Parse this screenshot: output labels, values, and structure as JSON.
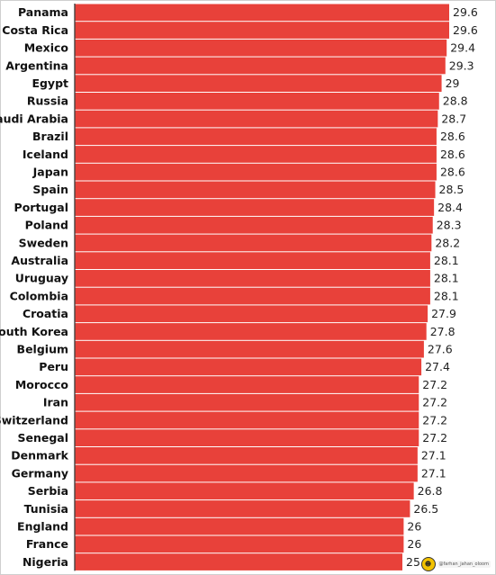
{
  "chart_data": {
    "type": "bar",
    "orientation": "horizontal",
    "categories": [
      "Panama",
      "Costa Rica",
      "Mexico",
      "Argentina",
      "Egypt",
      "Russia",
      "Saudi Arabia",
      "Brazil",
      "Iceland",
      "Japan",
      "Spain",
      "Portugal",
      "Poland",
      "Sweden",
      "Australia",
      "Uruguay",
      "Colombia",
      "Croatia",
      "South Korea",
      "Belgium",
      "Peru",
      "Morocco",
      "Iran",
      "Switzerland",
      "Senegal",
      "Denmark",
      "Germany",
      "Serbia",
      "Tunisia",
      "England",
      "France",
      "Nigeria"
    ],
    "values": [
      29.6,
      29.6,
      29.4,
      29.3,
      29,
      28.8,
      28.7,
      28.6,
      28.6,
      28.6,
      28.5,
      28.4,
      28.3,
      28.2,
      28.1,
      28.1,
      28.1,
      27.9,
      27.8,
      27.6,
      27.4,
      27.2,
      27.2,
      27.2,
      27.2,
      27.1,
      27.1,
      26.8,
      26.5,
      26,
      26,
      25.9
    ],
    "value_labels": [
      "29.6",
      "29.6",
      "29.4",
      "29.3",
      "29",
      "28.8",
      "28.7",
      "28.6",
      "28.6",
      "28.6",
      "28.5",
      "28.4",
      "28.3",
      "28.2",
      "28.1",
      "28.1",
      "28.1",
      "27.9",
      "27.8",
      "27.6",
      "27.4",
      "27.2",
      "27.2",
      "27.2",
      "27.2",
      "27.1",
      "27.1",
      "26.8",
      "26.5",
      "26",
      "26",
      "25.9"
    ],
    "title": "",
    "xlabel": "",
    "ylabel": "",
    "grid": false,
    "legend": "none"
  },
  "colors": {
    "bar": "#e8413a",
    "background": "#ffffff"
  },
  "watermark": {
    "text": "@farhan_jahan_oloom",
    "icon": "logo-icon"
  }
}
